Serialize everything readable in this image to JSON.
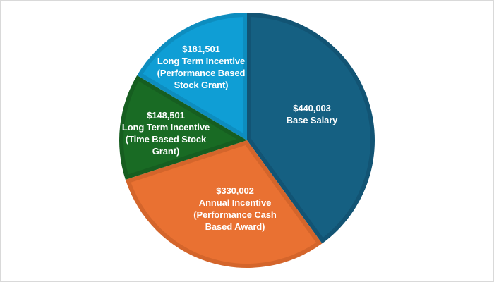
{
  "chart_data": {
    "type": "pie",
    "title": "",
    "start_angle_deg": 0,
    "direction": "clockwise",
    "slices": [
      {
        "name": "Base Salary",
        "value": 440003,
        "value_label": "$440,003",
        "label_lines": [
          "Base Salary"
        ],
        "color": "#156082",
        "edge_color": "#125474"
      },
      {
        "name": "Annual Incentive (Performance Cash Based Award)",
        "value": 330002,
        "value_label": "$330,002",
        "label_lines": [
          "Annual Incentive",
          "(Performance Cash",
          "Based Award)"
        ],
        "color": "#E97132",
        "edge_color": "#D4652B"
      },
      {
        "name": "Long Term Incentive (Time Based Stock Grant)",
        "value": 148501,
        "value_label": "$148,501",
        "label_lines": [
          "Long Term Incentive",
          "(Time Based Stock",
          "Grant)"
        ],
        "color": "#196B24",
        "edge_color": "#165E20"
      },
      {
        "name": "Long Term Incentive (Performance Based Stock Grant)",
        "value": 181501,
        "value_label": "$181,501",
        "label_lines": [
          "Long Term Incentive",
          "(Performance Based",
          "Stock Grant)"
        ],
        "color": "#0F9ED5",
        "edge_color": "#0D8DBF"
      }
    ],
    "legend": "none",
    "data_labels": "inside"
  }
}
